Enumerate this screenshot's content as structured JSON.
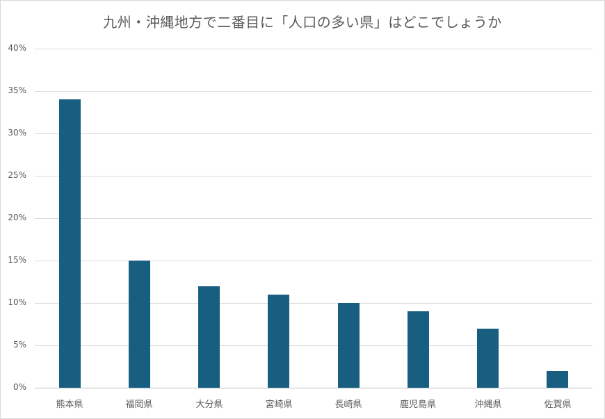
{
  "chart_data": {
    "type": "bar",
    "title": "九州・沖縄地方で二番目に「人口の多い県」はどこでしょうか",
    "xlabel": "",
    "ylabel": "",
    "categories": [
      "熊本県",
      "福岡県",
      "大分県",
      "宮崎県",
      "長崎県",
      "鹿児島県",
      "沖縄県",
      "佐賀県"
    ],
    "values": [
      34,
      15,
      12,
      11,
      10,
      9,
      7,
      2
    ],
    "value_format": "percent",
    "ylim": [
      0,
      40
    ],
    "yticks": [
      "0%",
      "5%",
      "10%",
      "15%",
      "20%",
      "25%",
      "30%",
      "35%",
      "40%"
    ],
    "grid": true,
    "legend": "none",
    "bar_color": "#175e80"
  }
}
